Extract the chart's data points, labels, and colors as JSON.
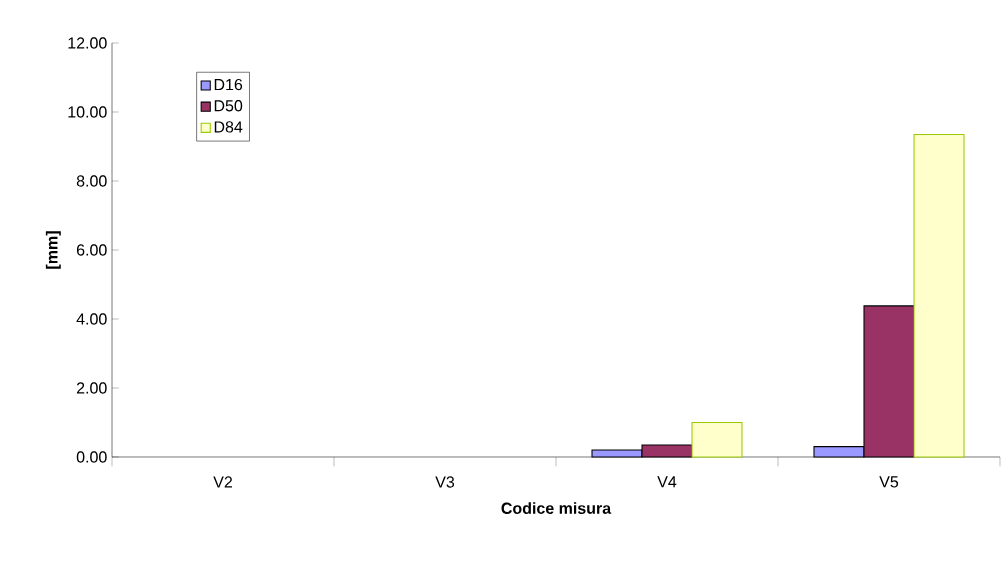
{
  "chart_data": {
    "type": "bar",
    "xlabel": "Codice misura",
    "ylabel": "[mm]",
    "categories": [
      "V2",
      "V3",
      "V4",
      "V5"
    ],
    "series": [
      {
        "name": "D16",
        "color": "#9999ff",
        "values": [
          null,
          null,
          0.2,
          0.3
        ]
      },
      {
        "name": "D50",
        "color": "#993366",
        "values": [
          null,
          null,
          0.35,
          4.38
        ]
      },
      {
        "name": "D84",
        "color": "#ffffcc",
        "values": [
          null,
          null,
          1.0,
          9.35
        ]
      }
    ],
    "ylim": [
      0,
      12
    ],
    "yticks": [
      {
        "value": 0,
        "label": "0.00"
      },
      {
        "value": 2,
        "label": "2.00"
      },
      {
        "value": 4,
        "label": "4.00"
      },
      {
        "value": 6,
        "label": "6.00"
      },
      {
        "value": 8,
        "label": "8.00"
      },
      {
        "value": 10,
        "label": "10.00"
      },
      {
        "value": 12,
        "label": "12.00"
      }
    ],
    "grid": false,
    "legend": "top left"
  }
}
